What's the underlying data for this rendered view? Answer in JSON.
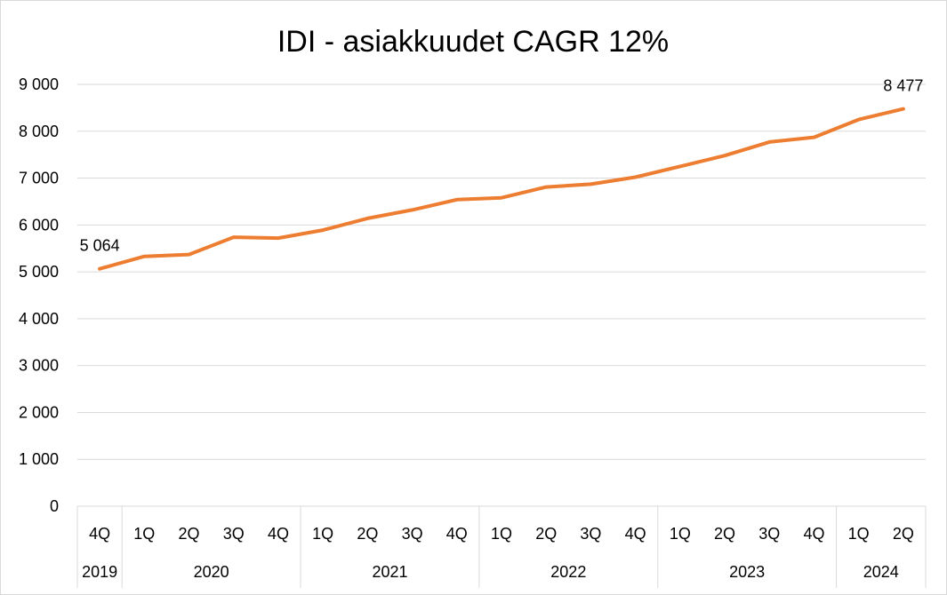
{
  "chart_data": {
    "type": "line",
    "title": "IDI - asiakkuudet CAGR 12%",
    "xlabel": "",
    "ylabel": "",
    "ylim": [
      0,
      9000
    ],
    "yticks": [
      0,
      1000,
      2000,
      3000,
      4000,
      5000,
      6000,
      7000,
      8000,
      9000
    ],
    "ytick_labels": [
      "0",
      "1 000",
      "2 000",
      "3 000",
      "4 000",
      "5 000",
      "6 000",
      "7 000",
      "8 000",
      "9 000"
    ],
    "grid": true,
    "legend": "none",
    "quarters": [
      "4Q",
      "1Q",
      "2Q",
      "3Q",
      "4Q",
      "1Q",
      "2Q",
      "3Q",
      "4Q",
      "1Q",
      "2Q",
      "3Q",
      "4Q",
      "1Q",
      "2Q",
      "3Q",
      "4Q",
      "1Q",
      "2Q"
    ],
    "years": [
      {
        "label": "2019",
        "count": 1
      },
      {
        "label": "2020",
        "count": 4
      },
      {
        "label": "2021",
        "count": 4
      },
      {
        "label": "2022",
        "count": 4
      },
      {
        "label": "2023",
        "count": 4
      },
      {
        "label": "2024",
        "count": 2
      }
    ],
    "series": [
      {
        "values": [
          5064,
          5330,
          5370,
          5740,
          5720,
          5890,
          6140,
          6320,
          6540,
          6580,
          6810,
          6870,
          7020,
          7250,
          7480,
          7770,
          7870,
          8250,
          8477
        ],
        "color": "#ED7D31"
      }
    ],
    "data_labels": [
      {
        "index": 0,
        "text": "5 064"
      },
      {
        "index": 18,
        "text": "8 477"
      }
    ]
  }
}
